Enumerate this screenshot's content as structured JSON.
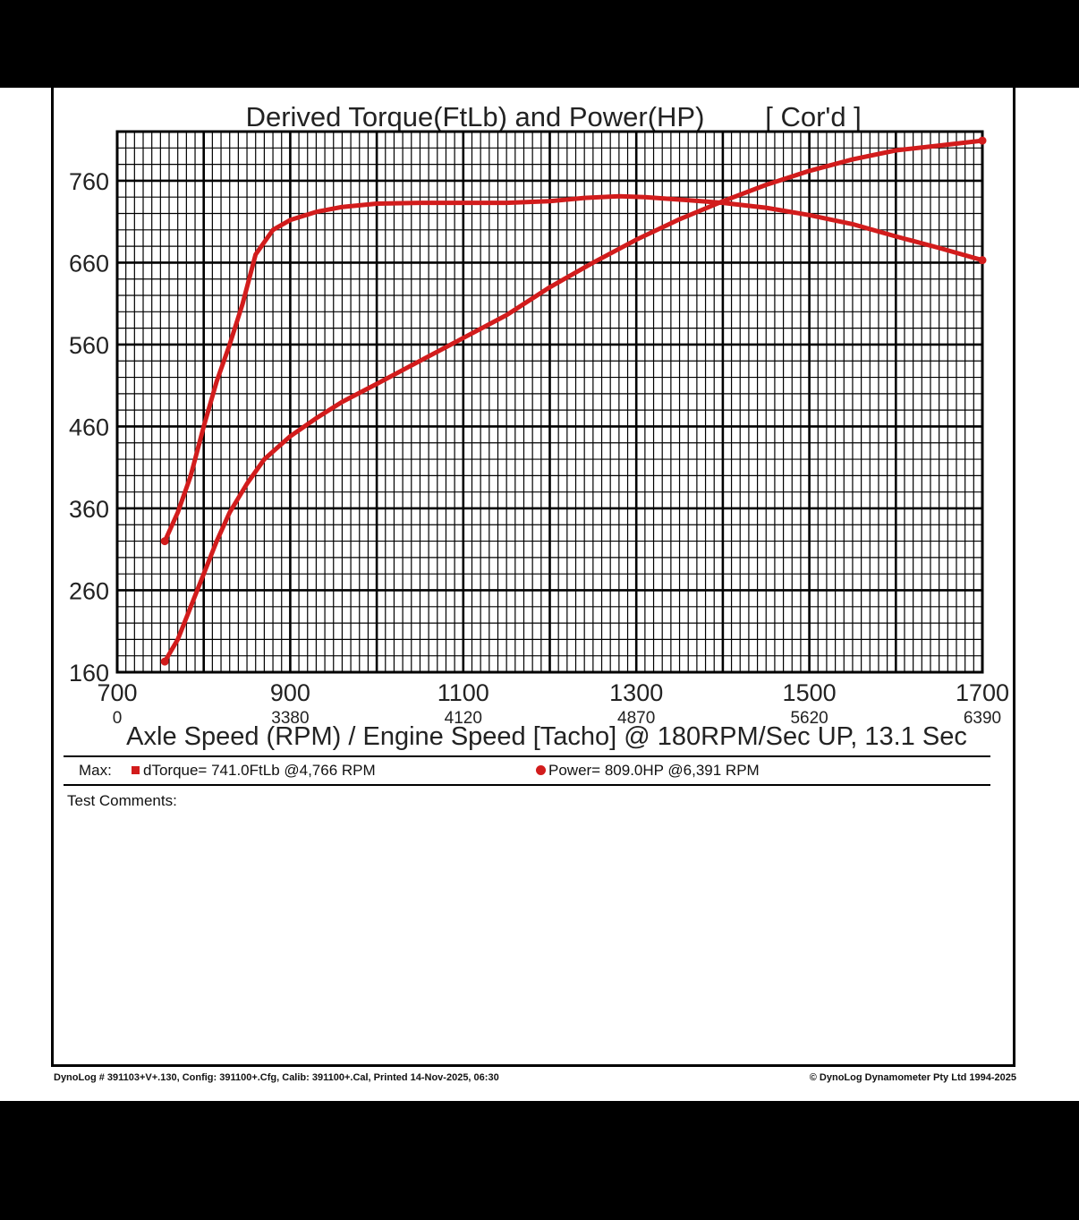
{
  "chart_data": {
    "type": "line",
    "title": "Derived Torque(FtLb) and Power(HP)",
    "title_tag": "[ Cor'd ]",
    "xlabel": "Axle Speed (RPM) / Engine Speed [Tacho] @ 180RPM/Sec UP, 13.1 Sec",
    "xlim": [
      700,
      1700
    ],
    "ylim": [
      160,
      820
    ],
    "x_ticks": [
      700,
      900,
      1100,
      1300,
      1500,
      1700
    ],
    "x_tick_labels": [
      "700",
      "900",
      "1100",
      "1300",
      "1500",
      "1700"
    ],
    "x2_tick_labels": [
      "0",
      "3380",
      "4120",
      "4870",
      "5620",
      "6390"
    ],
    "y_ticks": [
      160,
      260,
      360,
      460,
      560,
      660,
      760
    ],
    "y_tick_labels": [
      "160",
      "260",
      "360",
      "460",
      "560",
      "660",
      "760"
    ],
    "grid": true,
    "series": [
      {
        "name": "dTorque",
        "color": "#d21c1c",
        "points": [
          [
            755,
            320
          ],
          [
            770,
            355
          ],
          [
            785,
            400
          ],
          [
            800,
            460
          ],
          [
            815,
            515
          ],
          [
            830,
            560
          ],
          [
            845,
            610
          ],
          [
            860,
            670
          ],
          [
            880,
            700
          ],
          [
            900,
            712
          ],
          [
            930,
            722
          ],
          [
            960,
            728
          ],
          [
            1000,
            732
          ],
          [
            1050,
            733
          ],
          [
            1100,
            733
          ],
          [
            1150,
            733
          ],
          [
            1200,
            735
          ],
          [
            1240,
            739
          ],
          [
            1280,
            741
          ],
          [
            1310,
            740
          ],
          [
            1350,
            737
          ],
          [
            1400,
            733
          ],
          [
            1450,
            727
          ],
          [
            1500,
            718
          ],
          [
            1550,
            707
          ],
          [
            1600,
            692
          ],
          [
            1650,
            678
          ],
          [
            1700,
            663
          ]
        ]
      },
      {
        "name": "Power",
        "color": "#d21c1c",
        "points": [
          [
            755,
            173
          ],
          [
            770,
            200
          ],
          [
            785,
            240
          ],
          [
            800,
            280
          ],
          [
            815,
            320
          ],
          [
            830,
            355
          ],
          [
            850,
            390
          ],
          [
            870,
            420
          ],
          [
            900,
            448
          ],
          [
            930,
            470
          ],
          [
            960,
            490
          ],
          [
            1000,
            512
          ],
          [
            1050,
            540
          ],
          [
            1100,
            568
          ],
          [
            1150,
            596
          ],
          [
            1200,
            630
          ],
          [
            1250,
            660
          ],
          [
            1300,
            688
          ],
          [
            1350,
            713
          ],
          [
            1400,
            735
          ],
          [
            1450,
            755
          ],
          [
            1500,
            772
          ],
          [
            1550,
            786
          ],
          [
            1600,
            797
          ],
          [
            1650,
            803
          ],
          [
            1700,
            809
          ]
        ]
      }
    ]
  },
  "max_bar": {
    "prefix": "Max:",
    "torque_text": "dTorque= 741.0FtLb @4,766 RPM",
    "power_text": "Power= 809.0HP @6,391 RPM"
  },
  "comments_label": "Test Comments:",
  "footer": {
    "left": "DynoLog # 391103+V+.130, Config: 391100+.Cfg, Calib: 391100+.Cal, Printed 14-Nov-2025, 06:30",
    "right": "© DynoLog Dynamometer Pty Ltd 1994-2025"
  }
}
